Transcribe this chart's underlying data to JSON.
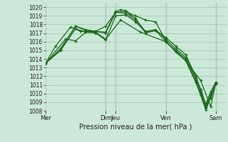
{
  "bg_color": "#cce8d8",
  "grid_color": "#aacebb",
  "line_color": "#1a6b1a",
  "xlabel": "Pression niveau de la mer( hPa )",
  "ylim": [
    1008,
    1020.5
  ],
  "yticks": [
    1008,
    1009,
    1010,
    1011,
    1012,
    1013,
    1014,
    1015,
    1016,
    1017,
    1018,
    1019,
    1020
  ],
  "xtick_labels": [
    "Mer",
    "Dim",
    "Jeu",
    "Ven",
    "Sam"
  ],
  "xtick_positions": [
    0,
    6,
    7,
    12,
    17
  ],
  "vlines_dark": [
    6,
    7,
    12,
    17
  ],
  "xlim": [
    0,
    18.0
  ],
  "lines": [
    [
      0.0,
      1013.5,
      1.5,
      1015.1,
      3.0,
      1017.8,
      4.0,
      1017.3,
      5.0,
      1017.2,
      6.0,
      1017.1,
      7.0,
      1019.5,
      7.5,
      1019.7,
      8.0,
      1019.6,
      8.5,
      1019.2,
      9.0,
      1019.0,
      10.0,
      1018.5,
      11.0,
      1018.3,
      12.0,
      1016.1,
      13.0,
      1014.8,
      14.0,
      1013.8,
      15.0,
      1011.3,
      15.5,
      1009.8,
      16.0,
      1008.1,
      16.5,
      1009.5,
      17.0,
      1011.1
    ],
    [
      0.0,
      1013.5,
      1.5,
      1015.2,
      3.0,
      1017.8,
      4.0,
      1017.4,
      5.0,
      1017.2,
      6.0,
      1017.0,
      7.0,
      1019.4,
      8.0,
      1019.5,
      9.0,
      1018.7,
      10.0,
      1017.0,
      11.0,
      1017.3,
      12.0,
      1016.0,
      13.0,
      1015.0,
      14.0,
      1014.0,
      15.0,
      1011.5,
      15.5,
      1010.0,
      16.0,
      1008.3,
      16.5,
      1009.7,
      17.0,
      1011.2
    ],
    [
      0.0,
      1013.5,
      2.0,
      1016.3,
      3.0,
      1016.1,
      4.0,
      1017.1,
      5.0,
      1017.2,
      6.0,
      1017.8,
      7.0,
      1019.4,
      8.0,
      1019.3,
      9.0,
      1018.5,
      10.0,
      1017.2,
      11.0,
      1017.4,
      12.0,
      1016.3,
      13.0,
      1015.2,
      14.0,
      1014.2,
      15.0,
      1011.8,
      15.5,
      1010.2,
      16.0,
      1008.5,
      16.5,
      1009.9,
      17.0,
      1011.1
    ],
    [
      0.0,
      1013.5,
      1.5,
      1015.0,
      3.0,
      1017.5,
      4.0,
      1017.1,
      5.0,
      1017.0,
      6.0,
      1016.2,
      7.0,
      1019.0,
      8.0,
      1019.1,
      9.0,
      1018.3,
      10.0,
      1017.1,
      11.0,
      1017.3,
      12.0,
      1016.5,
      13.0,
      1015.5,
      14.0,
      1014.5,
      15.0,
      1012.0,
      15.5,
      1010.5,
      16.0,
      1008.8,
      16.5,
      1010.2,
      17.0,
      1011.3
    ],
    [
      0.0,
      1013.5,
      1.0,
      1015.5,
      2.5,
      1017.7,
      3.5,
      1017.2,
      5.0,
      1017.1,
      6.0,
      1016.3,
      7.5,
      1018.5,
      9.5,
      1017.1,
      12.0,
      1016.0,
      14.0,
      1013.8,
      15.5,
      1011.5,
      16.5,
      1008.5,
      17.0,
      1011.2
    ]
  ]
}
